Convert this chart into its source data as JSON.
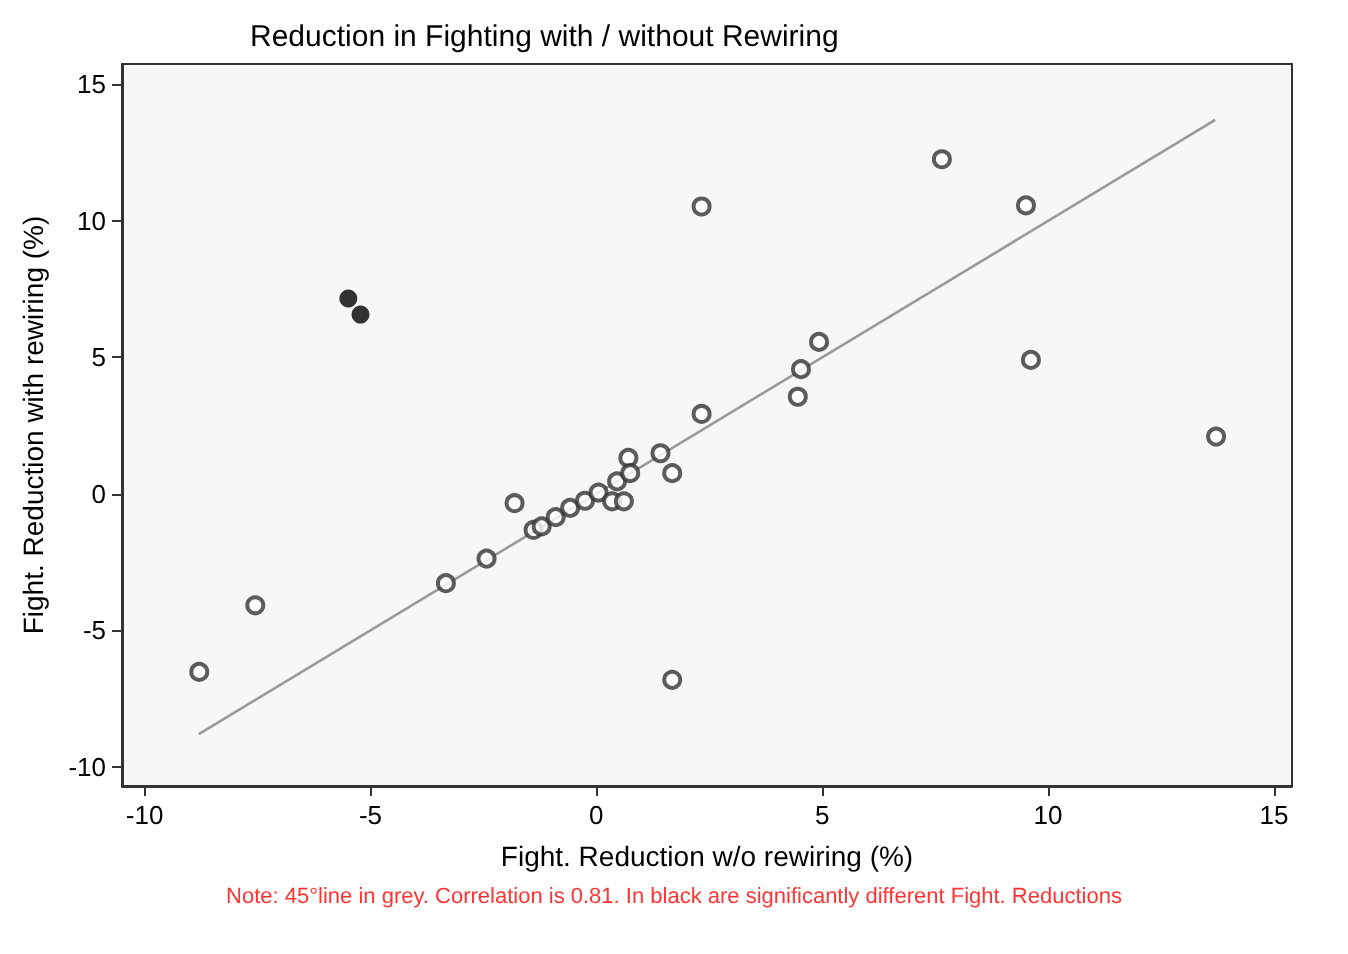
{
  "chart_data": {
    "type": "scatter",
    "title": "Reduction in Fighting with / without Rewiring",
    "xlabel": "Fight. Reduction w/o rewiring (%)",
    "ylabel": "Fight. Reduction with rewiring (%)",
    "xlim": [
      -10.5,
      15.4
    ],
    "ylim": [
      -10.7,
      15.75
    ],
    "xticks": [
      -10,
      -5,
      0,
      5,
      10,
      15
    ],
    "yticks": [
      -10,
      -5,
      0,
      5,
      10,
      15
    ],
    "grid": false,
    "annotations": [
      "Note: 45°line in grey. Correlation is 0.81. In black are significantly different Fight. Reductions"
    ],
    "series": [
      {
        "type": "scatter",
        "marker": "emptyCircle",
        "color": "#333333",
        "x": [
          -8.79,
          -7.55,
          -3.33,
          -2.43,
          -1.81,
          -1.39,
          -1.21,
          -0.9,
          -0.58,
          -0.25,
          0.05,
          0.35,
          0.61,
          0.46,
          0.71,
          0.75,
          1.42,
          1.68,
          1.68,
          2.33,
          2.33,
          7.65,
          9.51,
          4.93,
          4.53,
          4.46,
          9.62,
          13.72
        ],
        "values": [
          -6.52,
          -4.08,
          -3.27,
          -2.37,
          -0.34,
          -1.32,
          -1.19,
          -0.85,
          -0.51,
          -0.25,
          0.05,
          -0.27,
          -0.27,
          0.46,
          1.32,
          0.76,
          1.49,
          0.76,
          -6.81,
          2.93,
          10.53,
          12.26,
          10.57,
          5.57,
          4.57,
          3.56,
          4.91,
          2.1
        ]
      },
      {
        "type": "scatter",
        "marker": "circle",
        "color": "#000000",
        "x": [
          -5.49,
          -5.22
        ],
        "values": [
          7.16,
          6.57
        ]
      },
      {
        "type": "line",
        "marker": "none",
        "color": "#999999",
        "x": [
          -8.8,
          13.7
        ],
        "values": [
          -8.8,
          13.7
        ]
      }
    ]
  }
}
